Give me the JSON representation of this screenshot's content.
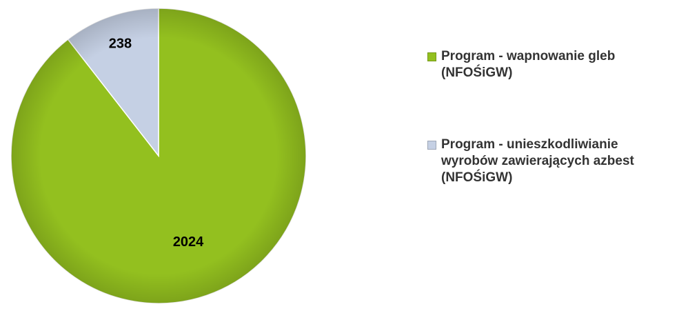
{
  "chart_data": {
    "type": "pie",
    "categories": [
      "Program - wapnowanie gleb (NFOŚiGW)",
      "Program - unieszkodliwianie wyrobów zawierających azbest (NFOŚiGW)"
    ],
    "values": [
      2024,
      238
    ],
    "colors": [
      "#93c01f",
      "#c5d0e4"
    ],
    "legend": "right"
  }
}
